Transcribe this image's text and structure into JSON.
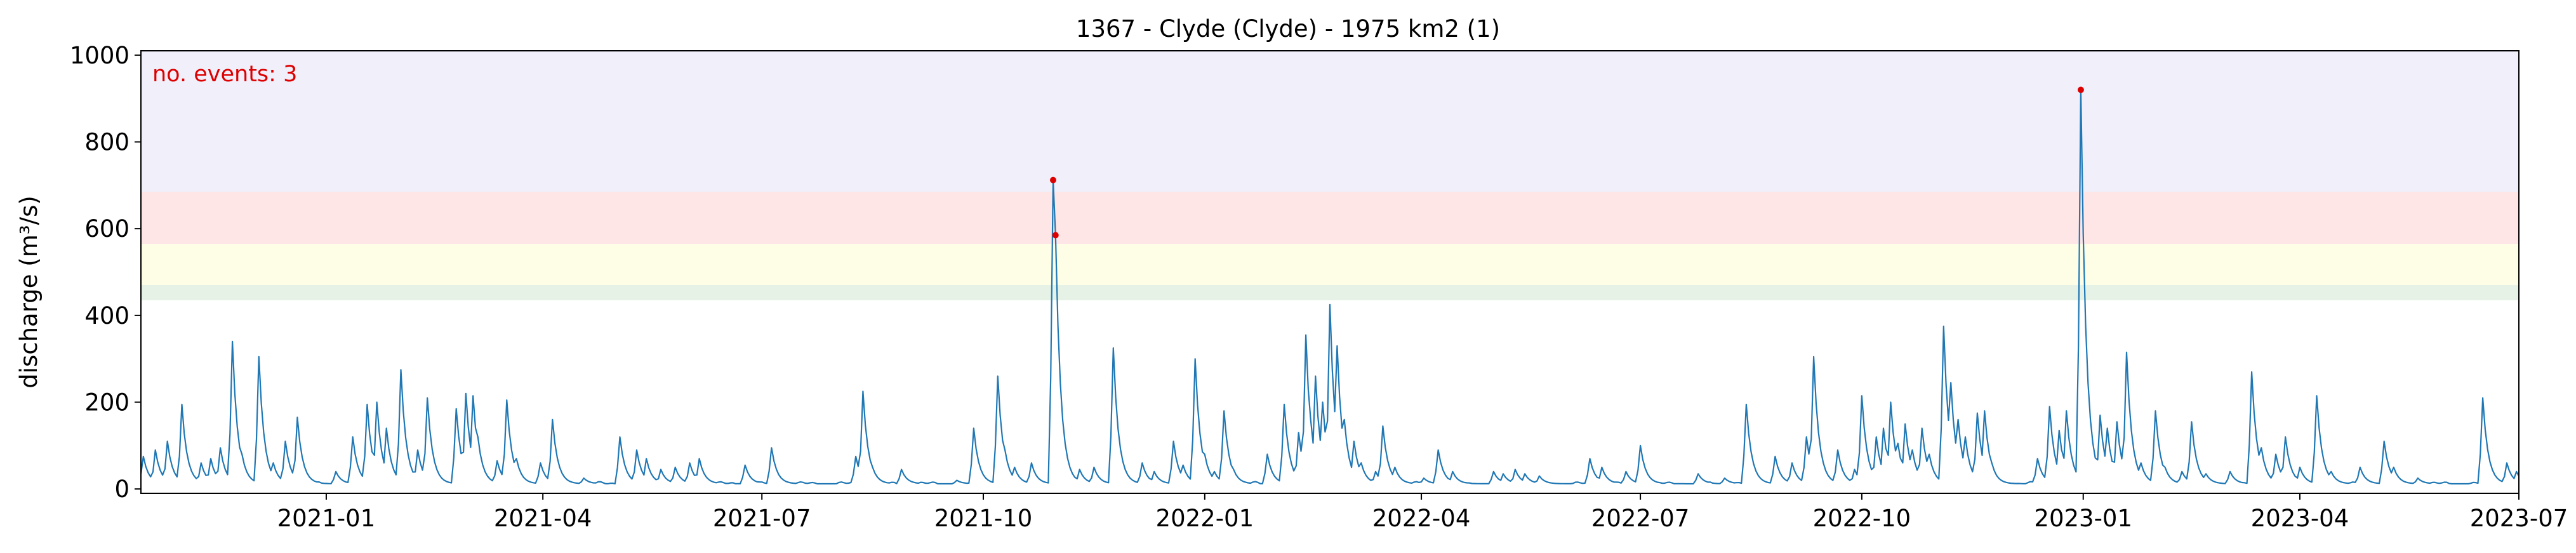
{
  "chart_data": {
    "type": "line",
    "title": "1367 - Clyde (Clyde) - 1975 km2 (1)",
    "xlabel": "",
    "ylabel": "discharge (m³/s)",
    "ylim": [
      -10,
      1010
    ],
    "xlim": [
      "2020-10-16",
      "2023-07-01"
    ],
    "grid": false,
    "y_ticks": [
      0,
      200,
      400,
      600,
      800,
      1000
    ],
    "x_ticks": [
      {
        "date": "2021-01-01",
        "label": "2021-01"
      },
      {
        "date": "2021-04-01",
        "label": "2021-04"
      },
      {
        "date": "2021-07-01",
        "label": "2021-07"
      },
      {
        "date": "2021-10-01",
        "label": "2021-10"
      },
      {
        "date": "2022-01-01",
        "label": "2022-01"
      },
      {
        "date": "2022-04-01",
        "label": "2022-04"
      },
      {
        "date": "2022-07-01",
        "label": "2022-07"
      },
      {
        "date": "2022-10-01",
        "label": "2022-10"
      },
      {
        "date": "2023-01-01",
        "label": "2023-01"
      },
      {
        "date": "2023-04-01",
        "label": "2023-04"
      },
      {
        "date": "2023-07-01",
        "label": "2023-07"
      }
    ],
    "threshold_bands": [
      {
        "from": 435,
        "to": 470,
        "color": "#e6f2e6"
      },
      {
        "from": 470,
        "to": 565,
        "color": "#fefee6"
      },
      {
        "from": 565,
        "to": 685,
        "color": "#fee5e6"
      },
      {
        "from": 685,
        "to": 1010,
        "color": "#f1eff9"
      }
    ],
    "annotation": {
      "text": "no. events: 3",
      "color": "#dd0000"
    },
    "series": [
      {
        "color": "#1f77b4",
        "baseflow": 12,
        "peaks": [
          [
            "2020-10-17",
            75
          ],
          [
            "2020-10-22",
            90
          ],
          [
            "2020-10-27",
            110
          ],
          [
            "2020-11-02",
            195
          ],
          [
            "2020-11-10",
            60
          ],
          [
            "2020-11-14",
            70
          ],
          [
            "2020-11-18",
            95
          ],
          [
            "2020-11-23",
            340
          ],
          [
            "2020-11-27",
            80
          ],
          [
            "2020-12-04",
            305
          ],
          [
            "2020-12-10",
            60
          ],
          [
            "2020-12-15",
            110
          ],
          [
            "2020-12-20",
            165
          ],
          [
            "2021-01-05",
            40
          ],
          [
            "2021-01-12",
            120
          ],
          [
            "2021-01-18",
            195
          ],
          [
            "2021-01-22",
            200
          ],
          [
            "2021-01-26",
            140
          ],
          [
            "2021-02-01",
            275
          ],
          [
            "2021-02-08",
            90
          ],
          [
            "2021-02-12",
            210
          ],
          [
            "2021-02-24",
            185
          ],
          [
            "2021-02-28",
            220
          ],
          [
            "2021-03-03",
            215
          ],
          [
            "2021-03-05",
            120
          ],
          [
            "2021-03-13",
            65
          ],
          [
            "2021-03-17",
            205
          ],
          [
            "2021-03-21",
            70
          ],
          [
            "2021-03-31",
            60
          ],
          [
            "2021-04-05",
            160
          ],
          [
            "2021-04-18",
            25
          ],
          [
            "2021-05-03",
            120
          ],
          [
            "2021-05-10",
            90
          ],
          [
            "2021-05-14",
            70
          ],
          [
            "2021-05-20",
            45
          ],
          [
            "2021-05-26",
            50
          ],
          [
            "2021-06-01",
            60
          ],
          [
            "2021-06-05",
            70
          ],
          [
            "2021-06-24",
            55
          ],
          [
            "2021-07-05",
            95
          ],
          [
            "2021-08-09",
            75
          ],
          [
            "2021-08-12",
            225
          ],
          [
            "2021-08-16",
            50
          ],
          [
            "2021-08-28",
            45
          ],
          [
            "2021-09-20",
            20
          ],
          [
            "2021-09-27",
            140
          ],
          [
            "2021-10-07",
            260
          ],
          [
            "2021-10-10",
            90
          ],
          [
            "2021-10-14",
            50
          ],
          [
            "2021-10-21",
            60
          ],
          [
            "2021-10-30",
            712
          ],
          [
            "2021-10-31",
            585
          ],
          [
            "2021-11-06",
            40
          ],
          [
            "2021-11-10",
            45
          ],
          [
            "2021-11-16",
            50
          ],
          [
            "2021-11-24",
            325
          ],
          [
            "2021-11-28",
            55
          ],
          [
            "2021-12-06",
            60
          ],
          [
            "2021-12-11",
            40
          ],
          [
            "2021-12-19",
            110
          ],
          [
            "2021-12-23",
            55
          ],
          [
            "2021-12-28",
            300
          ],
          [
            "2022-01-01",
            80
          ],
          [
            "2022-01-05",
            40
          ],
          [
            "2022-01-09",
            180
          ],
          [
            "2022-01-13",
            45
          ],
          [
            "2022-01-27",
            80
          ],
          [
            "2022-02-03",
            195
          ],
          [
            "2022-02-09",
            130
          ],
          [
            "2022-02-12",
            355
          ],
          [
            "2022-02-14",
            160
          ],
          [
            "2022-02-16",
            260
          ],
          [
            "2022-02-19",
            200
          ],
          [
            "2022-02-22",
            425
          ],
          [
            "2022-02-25",
            330
          ],
          [
            "2022-02-28",
            160
          ],
          [
            "2022-03-04",
            110
          ],
          [
            "2022-03-07",
            60
          ],
          [
            "2022-03-13",
            40
          ],
          [
            "2022-03-16",
            145
          ],
          [
            "2022-03-21",
            50
          ],
          [
            "2022-04-02",
            25
          ],
          [
            "2022-04-08",
            90
          ],
          [
            "2022-04-14",
            40
          ],
          [
            "2022-05-01",
            40
          ],
          [
            "2022-05-05",
            35
          ],
          [
            "2022-05-10",
            45
          ],
          [
            "2022-05-14",
            35
          ],
          [
            "2022-05-20",
            30
          ],
          [
            "2022-06-10",
            70
          ],
          [
            "2022-06-15",
            50
          ],
          [
            "2022-06-25",
            40
          ],
          [
            "2022-07-01",
            100
          ],
          [
            "2022-07-25",
            35
          ],
          [
            "2022-08-05",
            25
          ],
          [
            "2022-08-14",
            195
          ],
          [
            "2022-08-18",
            40
          ],
          [
            "2022-08-26",
            75
          ],
          [
            "2022-09-02",
            60
          ],
          [
            "2022-09-08",
            120
          ],
          [
            "2022-09-11",
            305
          ],
          [
            "2022-09-15",
            60
          ],
          [
            "2022-09-21",
            90
          ],
          [
            "2022-09-28",
            45
          ],
          [
            "2022-10-01",
            215
          ],
          [
            "2022-10-04",
            50
          ],
          [
            "2022-10-07",
            120
          ],
          [
            "2022-10-10",
            140
          ],
          [
            "2022-10-13",
            200
          ],
          [
            "2022-10-16",
            105
          ],
          [
            "2022-10-19",
            150
          ],
          [
            "2022-10-22",
            90
          ],
          [
            "2022-10-26",
            140
          ],
          [
            "2022-10-29",
            80
          ],
          [
            "2022-11-04",
            375
          ],
          [
            "2022-11-07",
            245
          ],
          [
            "2022-11-10",
            160
          ],
          [
            "2022-11-13",
            120
          ],
          [
            "2022-11-18",
            175
          ],
          [
            "2022-11-21",
            180
          ],
          [
            "2022-11-24",
            60
          ],
          [
            "2022-12-13",
            70
          ],
          [
            "2022-12-18",
            190
          ],
          [
            "2022-12-22",
            135
          ],
          [
            "2022-12-25",
            180
          ],
          [
            "2022-12-31",
            920
          ],
          [
            "2023-01-08",
            170
          ],
          [
            "2023-01-11",
            140
          ],
          [
            "2023-01-15",
            155
          ],
          [
            "2023-01-19",
            315
          ],
          [
            "2023-01-25",
            60
          ],
          [
            "2023-01-31",
            180
          ],
          [
            "2023-02-04",
            50
          ],
          [
            "2023-02-11",
            40
          ],
          [
            "2023-02-15",
            155
          ],
          [
            "2023-02-21",
            35
          ],
          [
            "2023-03-03",
            40
          ],
          [
            "2023-03-12",
            270
          ],
          [
            "2023-03-16",
            95
          ],
          [
            "2023-03-22",
            80
          ],
          [
            "2023-03-26",
            120
          ],
          [
            "2023-04-01",
            50
          ],
          [
            "2023-04-08",
            215
          ],
          [
            "2023-04-14",
            40
          ],
          [
            "2023-04-26",
            50
          ],
          [
            "2023-05-06",
            110
          ],
          [
            "2023-05-10",
            50
          ],
          [
            "2023-05-20",
            25
          ],
          [
            "2023-06-16",
            210
          ],
          [
            "2023-06-20",
            25
          ],
          [
            "2023-06-26",
            60
          ],
          [
            "2023-06-30",
            40
          ]
        ]
      }
    ],
    "events": [
      {
        "date": "2021-10-30",
        "value": 712
      },
      {
        "date": "2021-10-31",
        "value": 585
      },
      {
        "date": "2022-12-31",
        "value": 920
      }
    ]
  }
}
